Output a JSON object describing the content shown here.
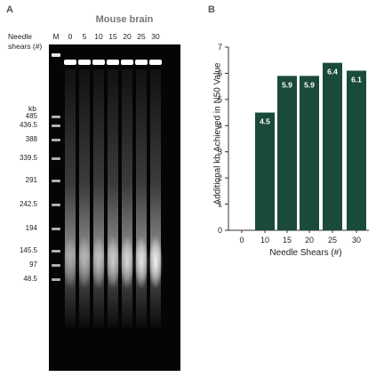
{
  "panel_a": {
    "letter": "A",
    "title": "Mouse brain",
    "row_label_line1": "Needle",
    "row_label_line2": "shears (#)",
    "marker_lane_label": "M",
    "lane_labels": [
      "0",
      "5",
      "10",
      "15",
      "20",
      "25",
      "30"
    ],
    "ladder_unit": "kb",
    "ladder_labels": [
      "485",
      "436.5",
      "388",
      "339.5",
      "291",
      "242.5",
      "194",
      "145.5",
      "97",
      "48.5"
    ]
  },
  "panel_b": {
    "letter": "B",
    "ylabel": "Additional kb Achieved in N50 Value",
    "xlabel": "Needle Shears (#)"
  },
  "chart_data": {
    "type": "bar",
    "categories": [
      "0",
      "10",
      "15",
      "20",
      "25",
      "30"
    ],
    "values": [
      0,
      4.5,
      5.9,
      5.9,
      6.4,
      6.1
    ],
    "value_labels": [
      "",
      "4.5",
      "5.9",
      "5.9",
      "6.4",
      "6.1"
    ],
    "ylim": [
      0,
      7
    ],
    "yticks": [
      "0",
      "1",
      "2",
      "3",
      "4",
      "5",
      "6",
      "7"
    ],
    "bar_color": "#1a4a3a",
    "grid": false
  }
}
